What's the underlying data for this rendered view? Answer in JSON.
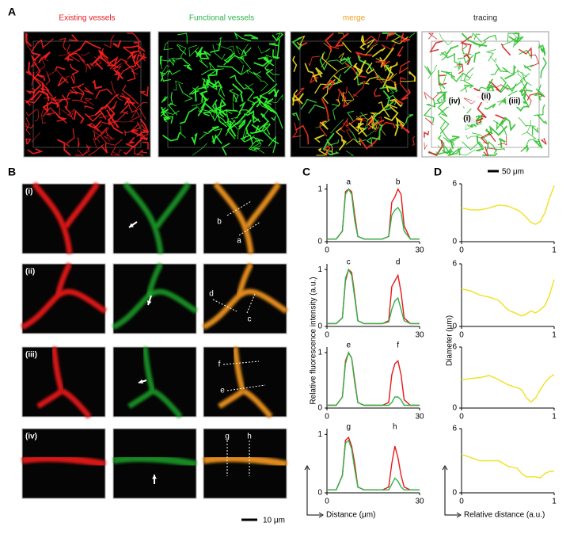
{
  "panel_a": {
    "label": "A",
    "titles": [
      "Existing vessels",
      "Functional vessels",
      "merge",
      "tracing"
    ],
    "tracing_labels": [
      "(iv)",
      "(ii)",
      "(iii)",
      "(i)"
    ]
  },
  "panel_b": {
    "label": "B",
    "rows": [
      "(i)",
      "(ii)",
      "(iii)",
      "(iv)"
    ],
    "line_labels": [
      [
        "b",
        "a"
      ],
      [
        "d",
        "c"
      ],
      [
        "f",
        "e"
      ],
      [
        "g",
        "h"
      ]
    ],
    "scale_bar": "10 μm"
  },
  "panel_c": {
    "label": "C",
    "y_label": "Relative fluorescence intensity (a.u.)",
    "x_label": "Distance (μm)"
  },
  "panel_d": {
    "label": "D",
    "y_label": "Diameter (μm)",
    "x_label": "Relative distance (a.u.)",
    "scale_bar": "50 μm"
  },
  "chart_data": [
    {
      "type": "line",
      "x": [
        0,
        3,
        5,
        6,
        7,
        8,
        9,
        10,
        12,
        15,
        18,
        20,
        21,
        22,
        23,
        24,
        25,
        27,
        30
      ],
      "xlim": [
        0,
        30
      ],
      "xticks": [
        0,
        30
      ],
      "ylim": [
        0,
        1.1
      ],
      "yticks": [
        0,
        1
      ],
      "series": [
        {
          "color": "#e8191b",
          "values": [
            0.05,
            0.05,
            0.2,
            0.95,
            1.0,
            0.95,
            0.5,
            0.1,
            0.05,
            0.05,
            0.05,
            0.1,
            0.75,
            0.85,
            1.0,
            0.9,
            0.3,
            0.05,
            0.05
          ]
        },
        {
          "color": "#2fb34a",
          "values": [
            0.05,
            0.05,
            0.2,
            0.9,
            1.0,
            0.9,
            0.4,
            0.1,
            0.05,
            0.05,
            0.05,
            0.1,
            0.5,
            0.6,
            0.65,
            0.55,
            0.2,
            0.05,
            0.05
          ]
        }
      ],
      "annotations": [
        {
          "text": "a",
          "x": 7
        },
        {
          "text": "b",
          "x": 23
        }
      ]
    },
    {
      "type": "line",
      "x": [
        0,
        3,
        5,
        6,
        7,
        8,
        9,
        10,
        12,
        15,
        18,
        20,
        21,
        22,
        23,
        24,
        25,
        27,
        30
      ],
      "xlim": [
        0,
        30
      ],
      "xticks": [
        0,
        30
      ],
      "ylim": [
        0,
        1.1
      ],
      "yticks": [
        0,
        1
      ],
      "series": [
        {
          "color": "#e8191b",
          "values": [
            0.05,
            0.05,
            0.15,
            0.8,
            1.0,
            0.95,
            0.55,
            0.1,
            0.05,
            0.05,
            0.05,
            0.1,
            0.7,
            0.8,
            0.9,
            0.6,
            0.15,
            0.05,
            0.05
          ]
        },
        {
          "color": "#2fb34a",
          "values": [
            0.05,
            0.05,
            0.15,
            0.85,
            1.0,
            0.9,
            0.5,
            0.1,
            0.05,
            0.05,
            0.05,
            0.08,
            0.3,
            0.45,
            0.5,
            0.3,
            0.1,
            0.05,
            0.05
          ]
        }
      ],
      "annotations": [
        {
          "text": "c",
          "x": 7
        },
        {
          "text": "d",
          "x": 23
        }
      ]
    },
    {
      "type": "line",
      "x": [
        0,
        3,
        5,
        6,
        7,
        8,
        9,
        10,
        12,
        15,
        18,
        20,
        21,
        22,
        23,
        24,
        25,
        27,
        30
      ],
      "xlim": [
        0,
        30
      ],
      "xticks": [
        0,
        30
      ],
      "ylim": [
        0,
        1.1
      ],
      "yticks": [
        0,
        1
      ],
      "series": [
        {
          "color": "#e8191b",
          "values": [
            0.05,
            0.05,
            0.2,
            0.85,
            1.0,
            0.9,
            0.5,
            0.1,
            0.05,
            0.05,
            0.05,
            0.1,
            0.6,
            0.8,
            0.85,
            0.6,
            0.15,
            0.05,
            0.05
          ]
        },
        {
          "color": "#2fb34a",
          "values": [
            0.05,
            0.05,
            0.2,
            0.8,
            1.0,
            0.9,
            0.45,
            0.1,
            0.05,
            0.05,
            0.05,
            0.05,
            0.1,
            0.2,
            0.2,
            0.15,
            0.05,
            0.05,
            0.05
          ]
        }
      ],
      "annotations": [
        {
          "text": "e",
          "x": 7
        },
        {
          "text": "f",
          "x": 23
        }
      ]
    },
    {
      "type": "line",
      "x": [
        0,
        3,
        5,
        6,
        7,
        8,
        9,
        10,
        12,
        15,
        18,
        20,
        21,
        22,
        23,
        24,
        25,
        27,
        30
      ],
      "xlim": [
        0,
        30
      ],
      "xticks": [
        0,
        30
      ],
      "ylim": [
        0,
        1.1
      ],
      "yticks": [
        0,
        1
      ],
      "series": [
        {
          "color": "#e8191b",
          "values": [
            0.05,
            0.05,
            0.3,
            0.9,
            0.95,
            0.8,
            0.5,
            0.1,
            0.05,
            0.05,
            0.05,
            0.1,
            0.5,
            0.8,
            0.6,
            0.3,
            0.1,
            0.05,
            0.05
          ]
        },
        {
          "color": "#2fb34a",
          "values": [
            0.05,
            0.05,
            0.3,
            0.85,
            0.9,
            0.75,
            0.4,
            0.1,
            0.05,
            0.05,
            0.05,
            0.05,
            0.15,
            0.25,
            0.2,
            0.1,
            0.05,
            0.05,
            0.05
          ]
        }
      ],
      "annotations": [
        {
          "text": "g",
          "x": 7
        },
        {
          "text": "h",
          "x": 22
        }
      ]
    },
    {
      "type": "line",
      "x": [
        0,
        0.1,
        0.2,
        0.3,
        0.4,
        0.5,
        0.6,
        0.65,
        0.7,
        0.75,
        0.8,
        0.85,
        0.9,
        0.95,
        1
      ],
      "xlim": [
        0,
        1
      ],
      "xticks": [
        0,
        1
      ],
      "ylim": [
        0,
        6
      ],
      "yticks": [
        0,
        6
      ],
      "series": [
        {
          "color": "#f0e020",
          "values": [
            3.5,
            3.3,
            3.3,
            3.5,
            3.8,
            3.7,
            3.3,
            3.0,
            2.5,
            2.0,
            1.8,
            2.1,
            3.0,
            4.5,
            5.8
          ]
        }
      ]
    },
    {
      "type": "line",
      "x": [
        0,
        0.1,
        0.2,
        0.3,
        0.4,
        0.5,
        0.6,
        0.65,
        0.7,
        0.75,
        0.8,
        0.85,
        0.9,
        0.95,
        1
      ],
      "xlim": [
        0,
        1
      ],
      "xticks": [
        0,
        1
      ],
      "ylim": [
        0,
        6
      ],
      "yticks": [
        0,
        6
      ],
      "series": [
        {
          "color": "#f0e020",
          "values": [
            3.6,
            3.4,
            3.0,
            2.8,
            2.5,
            1.6,
            1.2,
            1.0,
            1.2,
            1.5,
            1.3,
            1.6,
            2.0,
            3.0,
            4.5
          ]
        }
      ]
    },
    {
      "type": "line",
      "x": [
        0,
        0.1,
        0.2,
        0.3,
        0.4,
        0.5,
        0.6,
        0.65,
        0.7,
        0.75,
        0.8,
        0.85,
        0.9,
        0.95,
        1
      ],
      "xlim": [
        0,
        1
      ],
      "xticks": [
        0,
        1
      ],
      "ylim": [
        0,
        6
      ],
      "yticks": [
        0,
        6
      ],
      "series": [
        {
          "color": "#f0e020",
          "values": [
            2.8,
            2.9,
            3.0,
            3.2,
            2.8,
            2.3,
            2.0,
            1.8,
            1.0,
            0.6,
            1.0,
            1.8,
            2.5,
            3.0,
            3.3
          ]
        }
      ]
    },
    {
      "type": "line",
      "x": [
        0,
        0.1,
        0.2,
        0.3,
        0.4,
        0.5,
        0.6,
        0.65,
        0.7,
        0.75,
        0.8,
        0.85,
        0.9,
        0.95,
        1
      ],
      "xlim": [
        0,
        1
      ],
      "xticks": [
        0,
        1
      ],
      "ylim": [
        0,
        6
      ],
      "yticks": [
        0,
        6
      ],
      "series": [
        {
          "color": "#f0e020",
          "values": [
            3.6,
            3.3,
            3.0,
            3.0,
            3.0,
            2.5,
            2.3,
            1.8,
            1.5,
            1.5,
            1.5,
            1.4,
            1.8,
            2.0,
            2.0
          ]
        }
      ]
    }
  ]
}
